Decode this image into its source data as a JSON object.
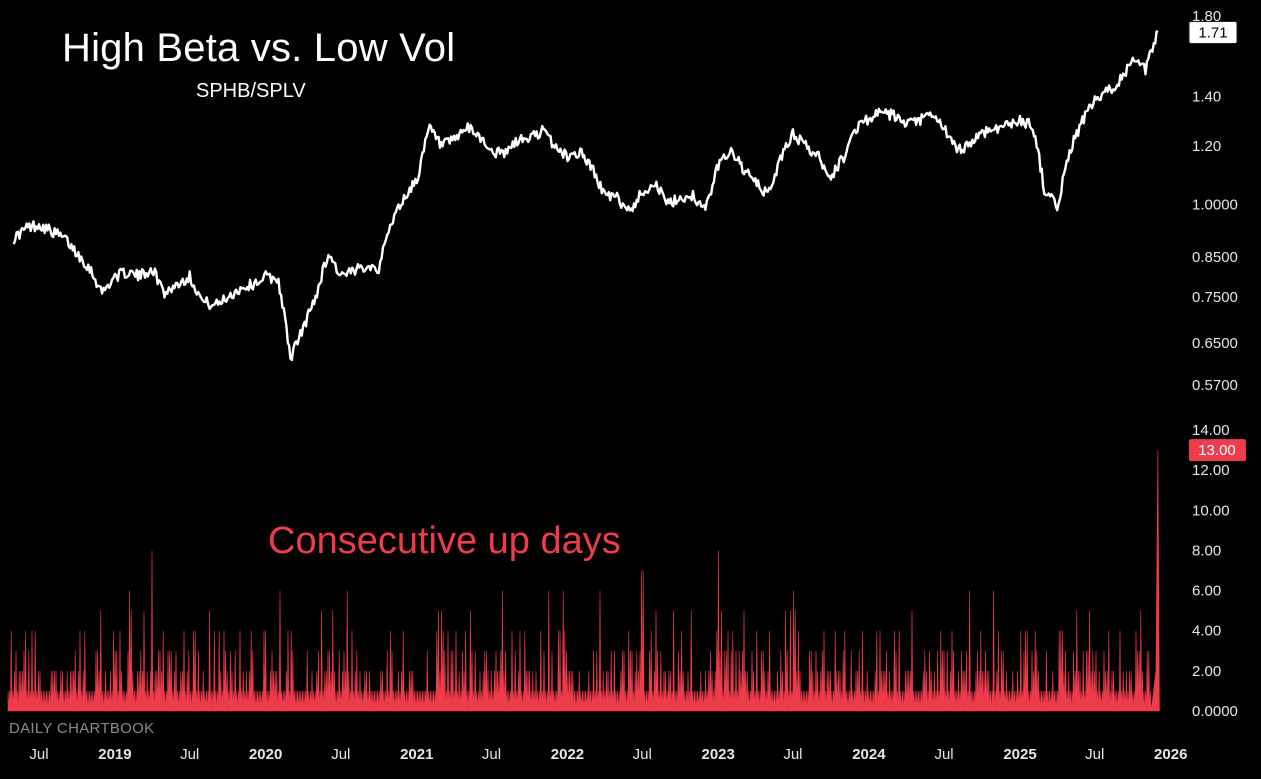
{
  "header": {
    "title": "High Beta vs. Low Vol",
    "subtitle": "SPHB/SPLV"
  },
  "lower_panel_label": "Consecutive up days",
  "watermark": "DAILY CHARTBOOK",
  "colors": {
    "background": "#000000",
    "ratio_line": "#ffffff",
    "up_days": "#ef3c4c",
    "badge_ratio_bg": "#ffffff",
    "badge_updays_bg": "#ef3c4c"
  },
  "chart_data": [
    {
      "type": "line",
      "title": "High Beta vs. Low Vol",
      "subtitle": "SPHB/SPLV",
      "yscale": "log",
      "ylim": [
        0.55,
        1.8
      ],
      "yticks": [
        "1.80",
        "1.40",
        "1.20",
        "1.0000",
        "0.8500",
        "0.7500",
        "0.6500",
        "0.5700"
      ],
      "last_value_label": "1.71",
      "grid": false,
      "series": [
        {
          "x": [
            "2018-05",
            "2018-06",
            "2018-07",
            "2018-08",
            "2018-09",
            "2018-10",
            "2018-11",
            "2018-12",
            "2019-01",
            "2019-02",
            "2019-03",
            "2019-04",
            "2019-05",
            "2019-06",
            "2019-07",
            "2019-08",
            "2019-09",
            "2019-10",
            "2019-11",
            "2019-12",
            "2020-01",
            "2020-02",
            "2020-03",
            "2020-04",
            "2020-05",
            "2020-06",
            "2020-07",
            "2020-08",
            "2020-09",
            "2020-10",
            "2020-11",
            "2020-12",
            "2021-01",
            "2021-02",
            "2021-03",
            "2021-04",
            "2021-05",
            "2021-06",
            "2021-07",
            "2021-08",
            "2021-09",
            "2021-10",
            "2021-11",
            "2021-12",
            "2022-01",
            "2022-02",
            "2022-03",
            "2022-04",
            "2022-05",
            "2022-06",
            "2022-07",
            "2022-08",
            "2022-09",
            "2022-10",
            "2022-11",
            "2022-12",
            "2023-01",
            "2023-02",
            "2023-03",
            "2023-04",
            "2023-05",
            "2023-06",
            "2023-07",
            "2023-08",
            "2023-09",
            "2023-10",
            "2023-11",
            "2023-12",
            "2024-01",
            "2024-02",
            "2024-03",
            "2024-04",
            "2024-05",
            "2024-06",
            "2024-07",
            "2024-08",
            "2024-09",
            "2024-10",
            "2024-11",
            "2024-12",
            "2025-01",
            "2025-02",
            "2025-03",
            "2025-04",
            "2025-05",
            "2025-06",
            "2025-07",
            "2025-08",
            "2025-09",
            "2025-10",
            "2025-11",
            "2025-12"
          ],
          "y": [
            0.9,
            0.93,
            0.94,
            0.92,
            0.9,
            0.86,
            0.82,
            0.76,
            0.8,
            0.81,
            0.8,
            0.82,
            0.76,
            0.78,
            0.8,
            0.74,
            0.73,
            0.75,
            0.77,
            0.78,
            0.8,
            0.79,
            0.62,
            0.68,
            0.75,
            0.86,
            0.8,
            0.81,
            0.83,
            0.82,
            0.95,
            1.02,
            1.08,
            1.27,
            1.2,
            1.22,
            1.27,
            1.24,
            1.18,
            1.17,
            1.22,
            1.23,
            1.26,
            1.2,
            1.16,
            1.18,
            1.12,
            1.03,
            1.02,
            0.98,
            1.04,
            1.07,
            1.0,
            1.02,
            1.03,
            0.98,
            1.13,
            1.19,
            1.12,
            1.07,
            1.03,
            1.15,
            1.25,
            1.2,
            1.16,
            1.09,
            1.16,
            1.27,
            1.31,
            1.33,
            1.32,
            1.28,
            1.3,
            1.32,
            1.27,
            1.18,
            1.21,
            1.25,
            1.27,
            1.28,
            1.3,
            1.28,
            1.05,
            0.99,
            1.18,
            1.3,
            1.38,
            1.42,
            1.48,
            1.56,
            1.52,
            1.71
          ]
        }
      ]
    },
    {
      "type": "area",
      "title": "Consecutive up days",
      "ylim": [
        0,
        14
      ],
      "yticks": [
        "14.00",
        "12.00",
        "10.00",
        "8.00",
        "6.00",
        "4.00",
        "2.00",
        "0.0000"
      ],
      "last_value_label": "13.00",
      "grid": false,
      "notable_peaks": [
        {
          "x": "2019-04",
          "y": 8
        },
        {
          "x": "2022-07",
          "y": 7
        },
        {
          "x": "2023-01",
          "y": 8
        },
        {
          "x": "2025-12",
          "y": 13
        }
      ],
      "max_typical": 6
    }
  ],
  "x_axis": {
    "labels": [
      {
        "label": "Jul",
        "year": false,
        "date": "2018-07"
      },
      {
        "label": "2019",
        "year": true,
        "date": "2019-01"
      },
      {
        "label": "Jul",
        "year": false,
        "date": "2019-07"
      },
      {
        "label": "2020",
        "year": true,
        "date": "2020-01"
      },
      {
        "label": "Jul",
        "year": false,
        "date": "2020-07"
      },
      {
        "label": "2021",
        "year": true,
        "date": "2021-01"
      },
      {
        "label": "Jul",
        "year": false,
        "date": "2021-07"
      },
      {
        "label": "2022",
        "year": true,
        "date": "2022-01"
      },
      {
        "label": "Jul",
        "year": false,
        "date": "2022-07"
      },
      {
        "label": "2023",
        "year": true,
        "date": "2023-01"
      },
      {
        "label": "Jul",
        "year": false,
        "date": "2023-07"
      },
      {
        "label": "2024",
        "year": true,
        "date": "2024-01"
      },
      {
        "label": "Jul",
        "year": false,
        "date": "2024-07"
      },
      {
        "label": "2025",
        "year": true,
        "date": "2025-01"
      },
      {
        "label": "Jul",
        "year": false,
        "date": "2025-07"
      },
      {
        "label": "2026",
        "year": true,
        "date": "2026-01"
      }
    ]
  }
}
